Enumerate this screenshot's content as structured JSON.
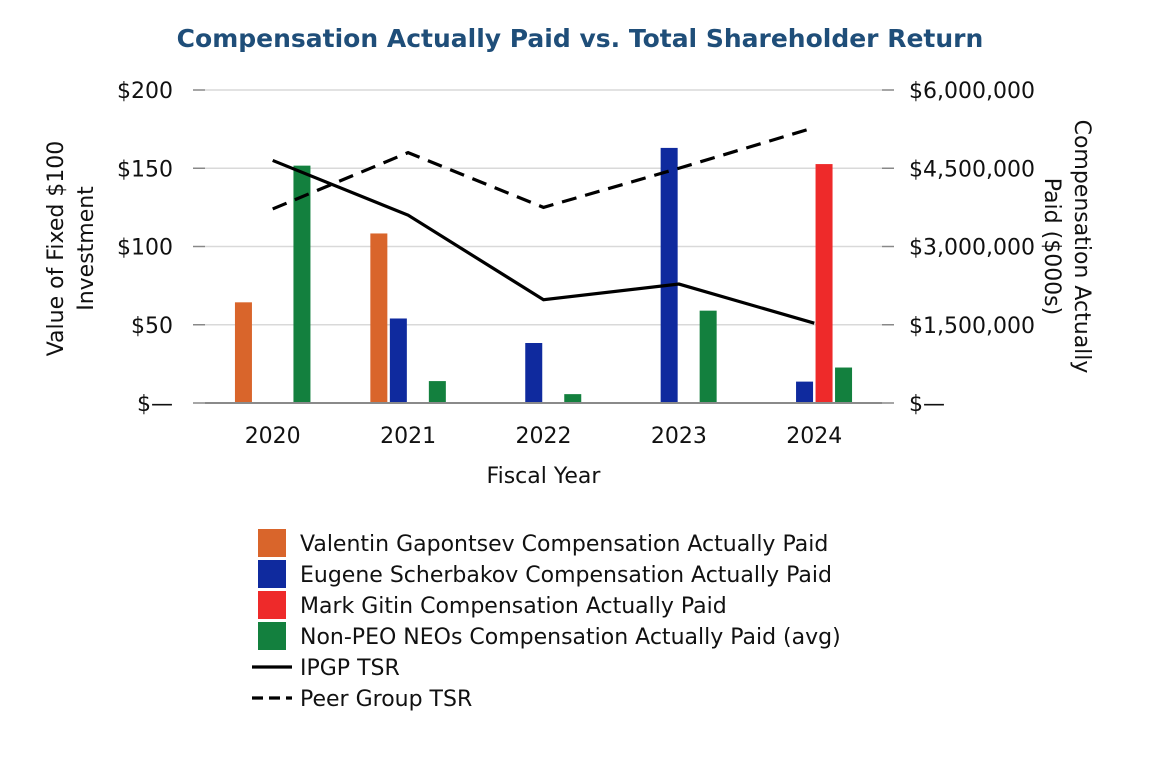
{
  "chart_data": {
    "type": "bar",
    "title": "Compensation Actually Paid vs. Total Shareholder Return",
    "categories": [
      "2020",
      "2021",
      "2022",
      "2023",
      "2024"
    ],
    "xlabel": "Fiscal Year",
    "ylabel_left_lines": [
      "Value of Fixed $100",
      "Investment"
    ],
    "ylabel_right_lines": [
      "Compensation Actually",
      "Paid ($000s)"
    ],
    "left_axis": {
      "ylim": [
        0,
        200
      ],
      "ticks": [
        0,
        50,
        100,
        150,
        200
      ],
      "tick_labels": [
        "$—",
        "$50",
        "$100",
        "$150",
        "$200"
      ]
    },
    "right_axis": {
      "ylim": [
        0,
        6000000
      ],
      "ticks": [
        0,
        1500000,
        3000000,
        4500000,
        6000000
      ],
      "tick_labels": [
        "$—",
        "$1,500,000",
        "$3,000,000",
        "$4,500,000",
        "$6,000,000"
      ]
    },
    "grid": true,
    "legend_placement": "bottom",
    "bar_series": [
      {
        "name": "Valentin Gapontsev Compensation Actually Paid",
        "color": "#d9652b",
        "values": [
          1930000,
          3250000,
          null,
          null,
          null
        ]
      },
      {
        "name": "Eugene Scherbakov Compensation Actually Paid",
        "color": "#0f2a9e",
        "values": [
          null,
          1620000,
          1150000,
          4890000,
          410000
        ]
      },
      {
        "name": "Mark Gitin Compensation Actually Paid",
        "color": "#ee2a2a",
        "values": [
          null,
          null,
          null,
          null,
          4580000
        ]
      },
      {
        "name": "Non-PEO NEOs Compensation Actually Paid (avg)",
        "color": "#13803e",
        "values": [
          4550000,
          420000,
          170000,
          1770000,
          680000
        ]
      }
    ],
    "line_series": [
      {
        "name": "IPGP TSR",
        "style": "solid",
        "color": "#000000",
        "values": [
          155,
          120,
          66,
          76,
          51
        ]
      },
      {
        "name": "Peer Group TSR",
        "style": "dashed",
        "color": "#000000",
        "values": [
          124,
          160,
          125,
          150,
          176
        ]
      }
    ]
  }
}
